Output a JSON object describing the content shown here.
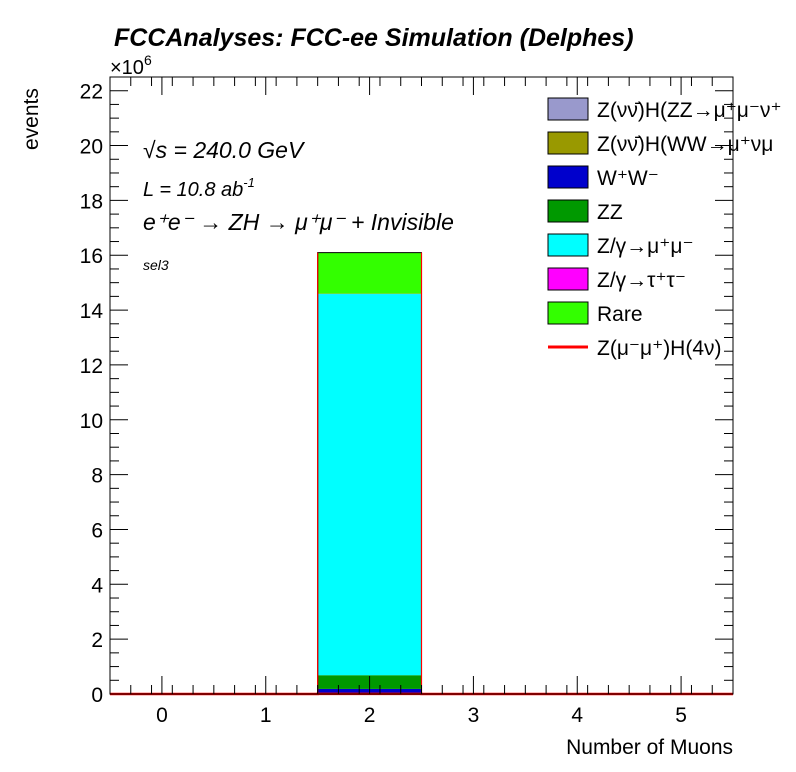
{
  "chart_data": {
    "type": "bar",
    "title": "FCCAnalyses: FCC-ee Simulation (Delphes)",
    "xlabel": "Number of Muons",
    "ylabel": "events",
    "y_multiplier_label": "×10",
    "y_multiplier_exp": "6",
    "xlim": [
      -0.5,
      5.5
    ],
    "ylim": [
      0,
      22.5
    ],
    "x_ticks": [
      "0",
      "1",
      "2",
      "3",
      "4",
      "5"
    ],
    "y_ticks": [
      "0",
      "2",
      "4",
      "6",
      "8",
      "10",
      "12",
      "14",
      "16",
      "18",
      "20",
      "22"
    ],
    "bin_edges": [
      -0.5,
      0.5,
      1.5,
      2.5,
      3.5,
      4.5,
      5.5
    ],
    "stacked": true,
    "series": [
      {
        "name": "Z(νν̄)H(ZZ→μ⁺μ⁻ν⁺ν⁻)",
        "legend_text": "Z(νν̄)H(ZZ→μ⁺μ⁻ν⁺",
        "color": "#9999cc",
        "values": [
          0,
          0,
          0.002,
          0,
          0,
          0
        ]
      },
      {
        "name": "Z(νν̄)H(WW→μ⁺νμ⁻ν)",
        "legend_text": "Z(νν̄)H(WW→μ⁺νμ",
        "color": "#999900",
        "values": [
          0,
          0,
          0.003,
          0,
          0,
          0
        ]
      },
      {
        "name": "W⁺W⁻",
        "legend_text": "W⁺W⁻",
        "color": "#0000cc",
        "values": [
          0,
          0,
          0.18,
          0,
          0,
          0
        ]
      },
      {
        "name": "ZZ",
        "legend_text": "ZZ",
        "color": "#009900",
        "values": [
          0,
          0,
          0.5,
          0,
          0,
          0
        ]
      },
      {
        "name": "Z/γ→μ⁺μ⁻",
        "legend_text": "Z/γ→μ⁺μ⁻",
        "color": "#00ffff",
        "values": [
          0,
          0,
          13.9,
          0,
          0,
          0
        ]
      },
      {
        "name": "Z/γ→τ⁺τ⁻",
        "legend_text": "Z/γ→τ⁺τ⁻",
        "color": "#ff00ff",
        "values": [
          0,
          0,
          0.01,
          0,
          0,
          0
        ]
      },
      {
        "name": "Rare",
        "legend_text": "Rare",
        "color": "#33ff00",
        "values": [
          0,
          0,
          1.5,
          0,
          0,
          0
        ]
      }
    ],
    "signal": {
      "name": "Z(μ⁻μ⁺)H(4ν)",
      "legend_text": "Z(μ⁻μ⁺)H(4ν)",
      "color": "#ff0000",
      "values": [
        0,
        0,
        0.003,
        0,
        0,
        0
      ]
    },
    "annotations": {
      "sqrt_s_sym": "√s",
      "sqrt_s_value": " = 240.0 GeV",
      "lumi": "L = 10.8 ab",
      "lumi_exp": "-1",
      "process": "e⁺e⁻ → ZH → μ⁺μ⁻ + Invisible",
      "selection": "sel3"
    },
    "legend_position": "top-right"
  }
}
